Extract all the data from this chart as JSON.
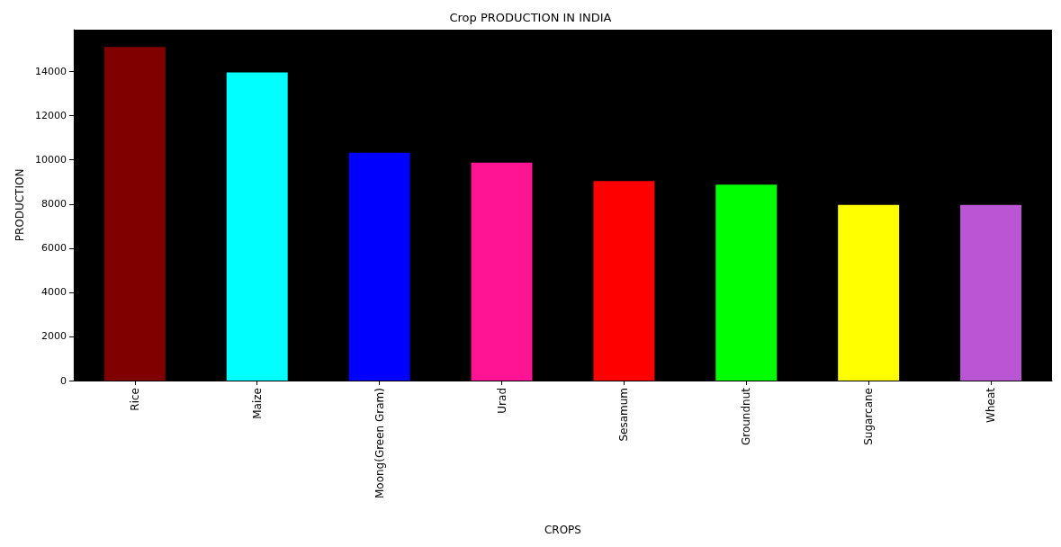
{
  "chart_data": {
    "type": "bar",
    "title": "Crop PRODUCTION IN INDIA",
    "xlabel": "CROPS",
    "ylabel": "PRODUCTION",
    "categories": [
      "Rice",
      "Maize",
      "Moong(Green Gram)",
      "Urad",
      "Sesamum",
      "Groundnut",
      "Sugarcane",
      "Wheat"
    ],
    "values": [
      15120,
      13960,
      10320,
      9880,
      9040,
      8880,
      7960,
      7960
    ],
    "colors": [
      "#800000",
      "#00ffff",
      "#0000ff",
      "#ff1493",
      "#ff0000",
      "#00ff00",
      "#ffff00",
      "#ba55d3"
    ],
    "ylim": [
      0,
      15900
    ],
    "yticks": [
      0,
      2000,
      4000,
      6000,
      8000,
      10000,
      12000,
      14000
    ],
    "grid": false
  }
}
